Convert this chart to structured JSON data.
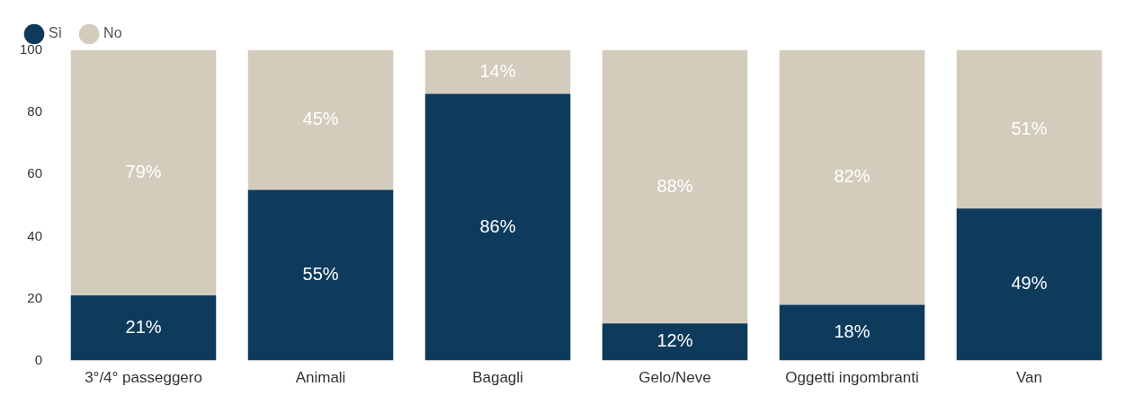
{
  "chart_data": {
    "type": "bar",
    "stacked": true,
    "legend": "top left",
    "grid": false,
    "categories": [
      "3°/4° passeggero",
      "Animali",
      "Bagagli",
      "Gelo/Neve",
      "Oggetti ingombranti",
      "Van"
    ],
    "ylim": [
      0,
      100
    ],
    "yticks": [
      0,
      20,
      40,
      60,
      80,
      100
    ],
    "series": [
      {
        "name": "Sì",
        "color": "#0e3a5c",
        "values": [
          21,
          55,
          86,
          12,
          18,
          49
        ],
        "value_labels": [
          "21%",
          "55%",
          "86%",
          "12%",
          "18%",
          "49%"
        ]
      },
      {
        "name": "No",
        "color": "#d3ccbc",
        "values": [
          79,
          45,
          14,
          88,
          82,
          51
        ],
        "value_labels": [
          "79%",
          "45%",
          "14%",
          "88%",
          "82%",
          "51%"
        ]
      }
    ]
  }
}
